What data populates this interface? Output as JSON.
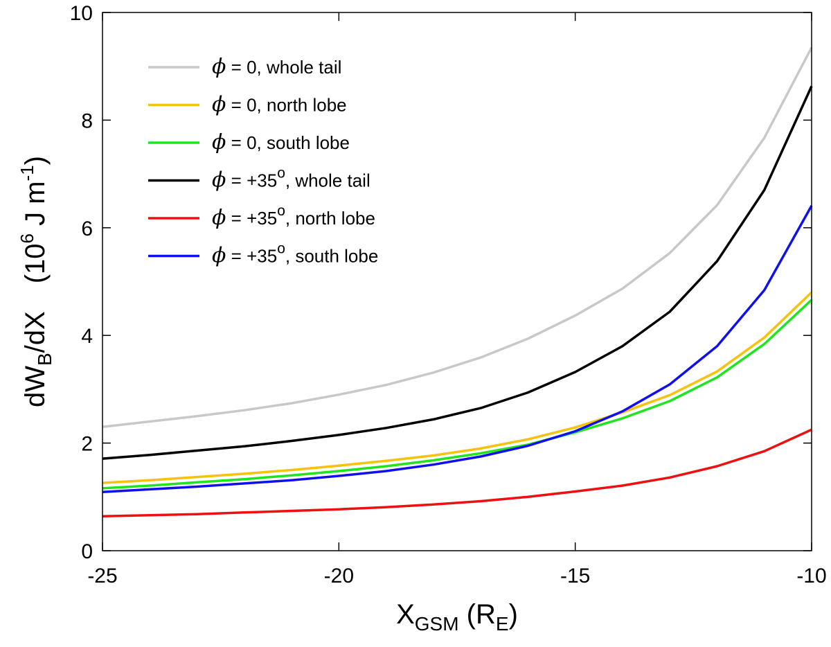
{
  "chart_data": {
    "type": "line",
    "xlabel": {
      "main": "X",
      "sub": "GSM",
      "unit_open": " (R",
      "unit_sub": "E",
      "unit_close": ")"
    },
    "ylabel": {
      "main": "dW",
      "sub": "B",
      "rest": "/dX",
      "unit_open": "(10",
      "unit_sup": "6",
      "unit_mid": " J m",
      "unit_sup2": "-1",
      "unit_close": ")"
    },
    "xlim": [
      -25,
      -10
    ],
    "ylim": [
      0,
      10
    ],
    "xticks": [
      -25,
      -20,
      -15,
      -10
    ],
    "xtick_labels": [
      "-25",
      "-20",
      "-15",
      "-10"
    ],
    "yticks": [
      0,
      2,
      4,
      6,
      8,
      10
    ],
    "ytick_labels": [
      "0",
      "2",
      "4",
      "6",
      "8",
      "10"
    ],
    "grid": false,
    "legend_position": "top-left",
    "x": [
      -25,
      -24,
      -23,
      -22,
      -21,
      -20,
      -19,
      -18,
      -17,
      -16,
      -15,
      -14,
      -13,
      -12,
      -11,
      -10
    ],
    "series": [
      {
        "name": "ϕ = 0, whole tail",
        "legend": {
          "sym": "ϕ",
          "pre": " = 0",
          "sup": "",
          "post": ", whole tail"
        },
        "color": "#c8c8c8",
        "values": [
          2.3,
          2.4,
          2.5,
          2.61,
          2.74,
          2.9,
          3.08,
          3.31,
          3.59,
          3.94,
          4.37,
          4.87,
          5.53,
          6.42,
          7.67,
          9.35
        ]
      },
      {
        "name": "ϕ = 0, north lobe",
        "legend": {
          "sym": "ϕ",
          "pre": " = 0",
          "sup": "",
          "post": ", north lobe"
        },
        "color": "#f7c20e",
        "values": [
          1.26,
          1.31,
          1.37,
          1.43,
          1.5,
          1.58,
          1.67,
          1.77,
          1.9,
          2.07,
          2.29,
          2.57,
          2.89,
          3.33,
          3.96,
          4.8
        ]
      },
      {
        "name": "ϕ = 0, south lobe",
        "legend": {
          "sym": "ϕ",
          "pre": " = 0",
          "sup": "",
          "post": ", south lobe"
        },
        "color": "#1ee51e",
        "values": [
          1.16,
          1.21,
          1.27,
          1.33,
          1.4,
          1.48,
          1.57,
          1.68,
          1.81,
          1.97,
          2.2,
          2.46,
          2.78,
          3.22,
          3.84,
          4.66
        ]
      },
      {
        "name": "ϕ = +35o, whole tail",
        "legend": {
          "sym": "ϕ",
          "pre": " = +35",
          "sup": "o",
          "post": ", whole tail"
        },
        "color": "#000000",
        "values": [
          1.71,
          1.78,
          1.86,
          1.94,
          2.04,
          2.15,
          2.28,
          2.44,
          2.65,
          2.94,
          3.32,
          3.8,
          4.44,
          5.38,
          6.7,
          8.63
        ]
      },
      {
        "name": "ϕ = +35o, north lobe",
        "legend": {
          "sym": "ϕ",
          "pre": " = +35",
          "sup": "o",
          "post": ", north lobe"
        },
        "color": "#ee1010",
        "values": [
          0.64,
          0.66,
          0.68,
          0.71,
          0.74,
          0.77,
          0.81,
          0.86,
          0.92,
          1.0,
          1.1,
          1.21,
          1.36,
          1.57,
          1.85,
          2.25
        ]
      },
      {
        "name": "ϕ = +35o, south lobe",
        "legend": {
          "sym": "ϕ",
          "pre": " = +35",
          "sup": "o",
          "post": ", south lobe"
        },
        "color": "#1010ee",
        "values": [
          1.09,
          1.14,
          1.19,
          1.25,
          1.31,
          1.39,
          1.48,
          1.6,
          1.75,
          1.95,
          2.22,
          2.59,
          3.09,
          3.8,
          4.84,
          6.41
        ]
      }
    ]
  }
}
